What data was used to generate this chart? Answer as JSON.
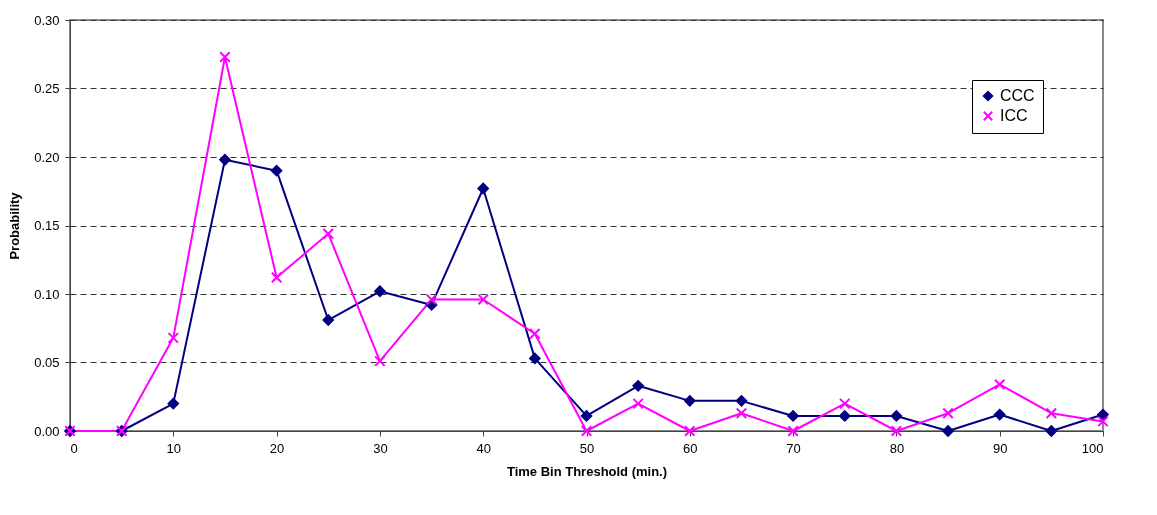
{
  "chart_data": {
    "type": "line",
    "xlabel": "Time Bin Threshold (min.)",
    "ylabel": "Probability",
    "x": [
      0,
      5,
      10,
      15,
      20,
      25,
      30,
      35,
      40,
      45,
      50,
      55,
      60,
      65,
      70,
      75,
      80,
      85,
      90,
      95,
      100
    ],
    "series": [
      {
        "name": "CCC",
        "color": "#000080",
        "marker": "diamond",
        "values": [
          0,
          0,
          0.02,
          0.198,
          0.19,
          0.081,
          0.102,
          0.092,
          0.177,
          0.053,
          0.011,
          0.033,
          0.022,
          0.022,
          0.011,
          0.011,
          0.011,
          0,
          0.012,
          0,
          0.012
        ]
      },
      {
        "name": "ICC",
        "color": "#ff00ff",
        "marker": "cross",
        "values": [
          0,
          0,
          0.068,
          0.273,
          0.112,
          0.144,
          0.051,
          0.096,
          0.096,
          0.071,
          0,
          0.02,
          0,
          0.013,
          0,
          0.02,
          0,
          0.013,
          0.034,
          0.013,
          0.007
        ]
      }
    ],
    "xlim": [
      0,
      100
    ],
    "xticks": [
      0,
      10,
      20,
      30,
      40,
      50,
      60,
      70,
      80,
      90,
      100
    ],
    "ylim": [
      0,
      0.3
    ],
    "yticks": [
      {
        "value": 0,
        "label": "0.00"
      },
      {
        "value": 0.05,
        "label": "0.05"
      },
      {
        "value": 0.1,
        "label": "0.10"
      },
      {
        "value": 0.15,
        "label": "0.15"
      },
      {
        "value": 0.2,
        "label": "0.20"
      },
      {
        "value": 0.25,
        "label": "0.25"
      },
      {
        "value": 0.3,
        "label": "0.30"
      }
    ],
    "grid": "y",
    "legend": "top right",
    "line_style": "solid"
  }
}
